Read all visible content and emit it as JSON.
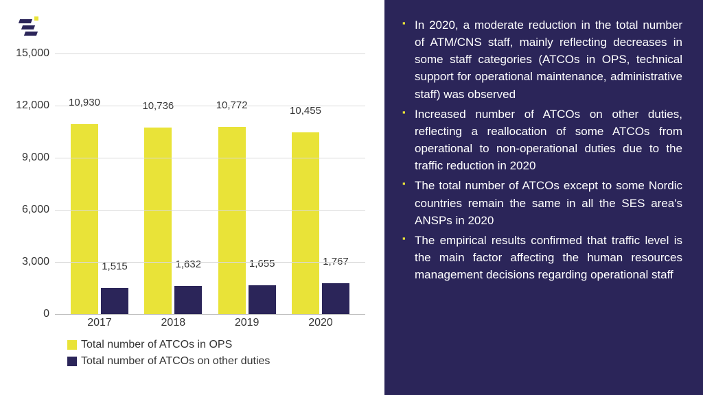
{
  "chart": {
    "type": "bar",
    "categories": [
      "2017",
      "2018",
      "2019",
      "2020"
    ],
    "series": [
      {
        "name": "Total number of ATCOs in OPS",
        "color": "#e9e338",
        "values": [
          10930,
          10736,
          10772,
          10455
        ],
        "labels": [
          "10,930",
          "10,736",
          "10,772",
          "10,455"
        ]
      },
      {
        "name": "Total number of ATCOs on other duties",
        "color": "#2b2559",
        "values": [
          1515,
          1632,
          1655,
          1767
        ],
        "labels": [
          "1,515",
          "1,632",
          "1,655",
          "1,767"
        ]
      }
    ],
    "y_axis": {
      "min": 0,
      "max": 15000,
      "ticks": [
        0,
        3000,
        6000,
        9000,
        12000,
        15000
      ],
      "tick_labels": [
        "0",
        "3,000",
        "6,000",
        "9,000",
        "12,000",
        "15,000"
      ]
    },
    "grid_color": "#d9d9d9",
    "axis_color": "#bfbfbf",
    "tick_fontsize": 16,
    "label_fontsize": 15,
    "background_color": "#ffffff"
  },
  "text_panel": {
    "background_color": "#2b2559",
    "bullet_color": "#e9e338",
    "text_color": "#ffffff",
    "fontsize": 17,
    "bullets": [
      "In 2020, a moderate reduction in the total number of ATM/CNS staff, mainly reflecting decreases in some staff categories (ATCOs in OPS, technical support for operational maintenance, administrative staff) was observed",
      "Increased number of ATCOs on other duties, reflecting a reallocation of some ATCOs from operational to non-operational duties due to the traffic reduction in 2020",
      "The total number of ATCOs except to some Nordic countries remain the same in all the SES area's ANSPs in 2020",
      "The empirical results confirmed that traffic level is the main factor affecting the human resources management decisions regarding operational staff"
    ]
  }
}
